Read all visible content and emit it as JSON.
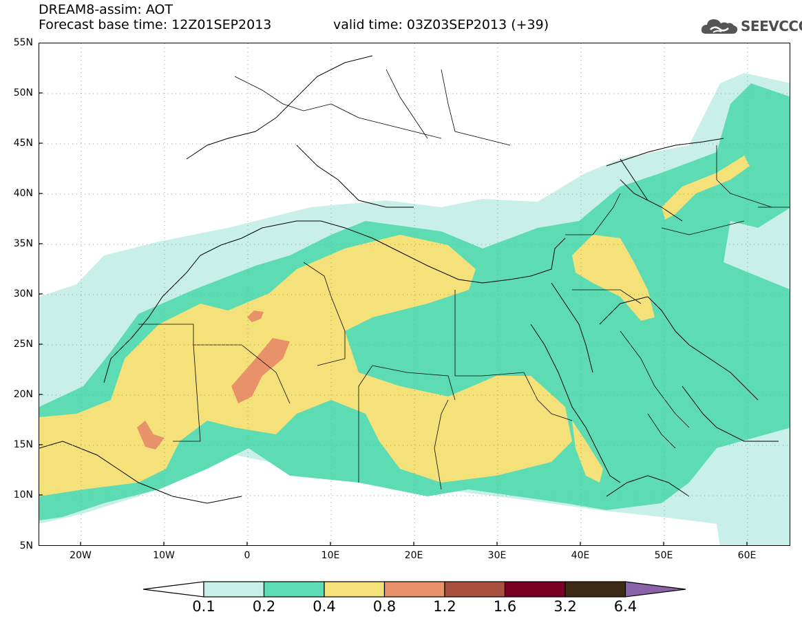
{
  "header": {
    "line1": "DREAM8-assim: AOT",
    "line2_left": "Forecast base time: 12Z01SEP2013",
    "line2_right": "valid time: 03Z03SEP2013 (+39)"
  },
  "logo": {
    "text": "SEEVCCC",
    "icon": "cloud-logo-icon"
  },
  "axes": {
    "lat_labels": [
      "55N",
      "50N",
      "45N",
      "40N",
      "35N",
      "30N",
      "25N",
      "20N",
      "15N",
      "10N",
      "5N"
    ],
    "lon_labels": [
      "20W",
      "10W",
      "0",
      "10E",
      "20E",
      "30E",
      "40E",
      "50E",
      "60E"
    ]
  },
  "colorbar": {
    "labels": [
      "0.1",
      "0.2",
      "0.4",
      "0.8",
      "1.2",
      "1.6",
      "3.2",
      "6.4"
    ],
    "colors": [
      "#c8f0e8",
      "#5ddcb4",
      "#f5e17a",
      "#e8926a",
      "#a94f3e",
      "#7a0024",
      "#3f2a17",
      "#8b63a8"
    ]
  },
  "field_colors": {
    "c1": "#c8f0e8",
    "c2": "#5ddcb4",
    "c3": "#f5e17a",
    "c4": "#e8926a"
  }
}
